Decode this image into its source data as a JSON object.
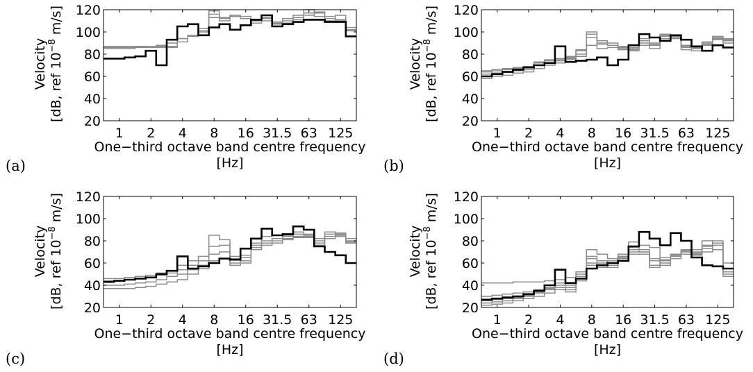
{
  "chart_data": [
    {
      "type": "line",
      "panel_label": "(a)",
      "xlabel_line1": "One−third octave band centre frequency",
      "xlabel_line2": "[Hz]",
      "ylabel_line1": "Velocity",
      "ylabel_line2": "[dB, ref 10",
      "ylabel_exp": "−8",
      "ylabel_tail": " m/s]",
      "x_tick_labels": [
        "1",
        "2",
        "4",
        "8",
        "16",
        "31.5",
        "63",
        "125"
      ],
      "y_ticks": [
        20,
        40,
        60,
        80,
        100,
        120
      ],
      "ylim": [
        20,
        120
      ],
      "x_bands": [
        "0.8",
        "1",
        "1.25",
        "1.6",
        "2",
        "2.5",
        "3.15",
        "4",
        "5",
        "6.3",
        "8",
        "10",
        "12.5",
        "16",
        "20",
        "25",
        "31.5",
        "40",
        "50",
        "63",
        "80",
        "100",
        "125",
        "160"
      ],
      "grid": false,
      "series": [
        {
          "style": "black",
          "values": [
            76,
            76,
            77,
            78,
            83,
            70,
            93,
            105,
            107,
            97,
            104,
            107,
            102,
            106,
            111,
            115,
            105,
            107,
            109,
            111,
            111,
            109,
            109,
            96
          ]
        },
        {
          "style": "gray",
          "values": [
            86,
            86,
            86,
            86,
            87,
            87,
            87,
            94,
            97,
            100,
            116,
            113,
            115,
            114,
            110,
            112,
            107,
            108,
            111,
            117,
            114,
            114,
            111,
            102
          ]
        },
        {
          "style": "gray",
          "values": [
            85,
            85,
            85,
            86,
            86,
            86,
            86,
            91,
            96,
            101,
            113,
            112,
            114,
            112,
            110,
            113,
            109,
            110,
            113,
            115,
            117,
            112,
            110,
            104
          ]
        },
        {
          "style": "gray",
          "values": [
            87,
            87,
            87,
            87,
            87,
            88,
            90,
            94,
            97,
            103,
            119,
            110,
            114,
            112,
            108,
            110,
            108,
            112,
            115,
            120,
            118,
            110,
            115,
            101
          ]
        }
      ]
    },
    {
      "type": "line",
      "panel_label": "(b)",
      "xlabel_line1": "One−third octave band centre frequency",
      "xlabel_line2": "[Hz]",
      "ylabel_line1": "Velocity",
      "ylabel_line2": "[dB, ref 10",
      "ylabel_exp": "−8",
      "ylabel_tail": " m/s]",
      "x_tick_labels": [
        "1",
        "2",
        "4",
        "8",
        "16",
        "31.5",
        "63",
        "125"
      ],
      "y_ticks": [
        20,
        40,
        60,
        80,
        100,
        120
      ],
      "ylim": [
        20,
        120
      ],
      "x_bands": [
        "0.8",
        "1",
        "1.25",
        "1.6",
        "2",
        "2.5",
        "3.15",
        "4",
        "5",
        "6.3",
        "8",
        "10",
        "12.5",
        "16",
        "20",
        "25",
        "31.5",
        "40",
        "50",
        "63",
        "80",
        "100",
        "125",
        "160"
      ],
      "grid": false,
      "series": [
        {
          "style": "black",
          "values": [
            60,
            62,
            64,
            66,
            68,
            70,
            72,
            87,
            73,
            74,
            75,
            77,
            70,
            75,
            88,
            98,
            95,
            92,
            97,
            93,
            87,
            83,
            88,
            86
          ]
        },
        {
          "style": "gray",
          "values": [
            64,
            65,
            66,
            67,
            68,
            72,
            74,
            75,
            77,
            84,
            100,
            92,
            90,
            87,
            86,
            94,
            90,
            96,
            96,
            88,
            85,
            90,
            94,
            92
          ]
        },
        {
          "style": "gray",
          "values": [
            62,
            63,
            64,
            65,
            66,
            70,
            72,
            74,
            76,
            80,
            95,
            90,
            88,
            85,
            84,
            90,
            88,
            97,
            95,
            86,
            85,
            89,
            96,
            94
          ]
        },
        {
          "style": "gray",
          "values": [
            58,
            60,
            61,
            63,
            64,
            67,
            70,
            72,
            75,
            78,
            88,
            85,
            86,
            84,
            83,
            88,
            85,
            94,
            94,
            84,
            83,
            88,
            93,
            90
          ]
        },
        {
          "style": "gray",
          "values": [
            65,
            66,
            67,
            68,
            69,
            73,
            75,
            76,
            78,
            83,
            98,
            89,
            88,
            86,
            85,
            92,
            89,
            98,
            97,
            87,
            86,
            91,
            95,
            93
          ]
        }
      ]
    },
    {
      "type": "line",
      "panel_label": "(c)",
      "xlabel_line1": "One−third octave band centre frequency",
      "xlabel_line2": "[Hz]",
      "ylabel_line1": "Velocity",
      "ylabel_line2": "[dB, ref 10",
      "ylabel_exp": "−8",
      "ylabel_tail": " m/s]",
      "x_tick_labels": [
        "1",
        "2",
        "4",
        "8",
        "16",
        "31.5",
        "63",
        "125"
      ],
      "y_ticks": [
        20,
        40,
        60,
        80,
        100,
        120
      ],
      "ylim": [
        20,
        120
      ],
      "x_bands": [
        "0.8",
        "1",
        "1.25",
        "1.6",
        "2",
        "2.5",
        "3.15",
        "4",
        "5",
        "6.3",
        "8",
        "10",
        "12.5",
        "16",
        "20",
        "25",
        "31.5",
        "40",
        "50",
        "63",
        "80",
        "100",
        "125",
        "160"
      ],
      "grid": false,
      "series": [
        {
          "style": "black",
          "values": [
            43,
            44,
            45,
            46,
            47,
            50,
            53,
            66,
            55,
            57,
            60,
            64,
            63,
            73,
            82,
            91,
            85,
            86,
            93,
            90,
            75,
            70,
            67,
            60
          ]
        },
        {
          "style": "gray",
          "values": [
            46,
            46,
            47,
            48,
            49,
            51,
            53,
            58,
            62,
            66,
            85,
            81,
            66,
            67,
            78,
            84,
            85,
            85,
            88,
            86,
            82,
            88,
            87,
            78
          ]
        },
        {
          "style": "gray",
          "values": [
            44,
            44,
            45,
            46,
            47,
            49,
            51,
            54,
            58,
            62,
            75,
            76,
            64,
            65,
            76,
            80,
            82,
            84,
            86,
            85,
            80,
            86,
            85,
            80
          ]
        },
        {
          "style": "gray",
          "values": [
            40,
            40,
            41,
            42,
            43,
            45,
            48,
            50,
            54,
            58,
            68,
            70,
            60,
            62,
            74,
            78,
            80,
            82,
            84,
            83,
            78,
            84,
            86,
            82
          ]
        },
        {
          "style": "gray",
          "values": [
            37,
            37,
            37,
            38,
            39,
            41,
            43,
            45,
            50,
            55,
            62,
            64,
            58,
            60,
            72,
            76,
            78,
            81,
            83,
            84,
            76,
            82,
            84,
            79
          ]
        }
      ]
    },
    {
      "type": "line",
      "panel_label": "(d)",
      "xlabel_line1": "One−third octave band centre frequency",
      "xlabel_line2": "[Hz]",
      "ylabel_line1": "Velocity",
      "ylabel_line2": "[dB, ref 10",
      "ylabel_exp": "−8",
      "ylabel_tail": " m/s]",
      "x_tick_labels": [
        "1",
        "2",
        "4",
        "8",
        "16",
        "31.5",
        "63",
        "125"
      ],
      "y_ticks": [
        20,
        40,
        60,
        80,
        100,
        120
      ],
      "ylim": [
        20,
        120
      ],
      "x_bands": [
        "0.8",
        "1",
        "1.25",
        "1.6",
        "2",
        "2.5",
        "3.15",
        "4",
        "5",
        "6.3",
        "8",
        "10",
        "12.5",
        "16",
        "20",
        "25",
        "31.5",
        "40",
        "50",
        "63",
        "80",
        "100",
        "125",
        "160"
      ],
      "grid": false,
      "series": [
        {
          "style": "black",
          "values": [
            27,
            28,
            29,
            30,
            32,
            35,
            40,
            54,
            42,
            46,
            55,
            58,
            60,
            62,
            75,
            88,
            82,
            76,
            87,
            80,
            65,
            58,
            57,
            55
          ]
        },
        {
          "style": "gray",
          "values": [
            42,
            42,
            42,
            43,
            43,
            43,
            44,
            45,
            47,
            52,
            72,
            68,
            64,
            66,
            79,
            76,
            74,
            58,
            67,
            70,
            72,
            80,
            78,
            55
          ]
        },
        {
          "style": "gray",
          "values": [
            30,
            31,
            32,
            33,
            34,
            36,
            38,
            42,
            40,
            48,
            66,
            62,
            60,
            65,
            74,
            72,
            62,
            65,
            68,
            70,
            67,
            70,
            76,
            50
          ]
        },
        {
          "style": "gray",
          "values": [
            24,
            25,
            26,
            28,
            30,
            33,
            36,
            38,
            36,
            46,
            60,
            58,
            56,
            64,
            70,
            70,
            58,
            62,
            66,
            72,
            70,
            75,
            78,
            60
          ]
        },
        {
          "style": "gray",
          "values": [
            22,
            23,
            24,
            26,
            28,
            30,
            33,
            36,
            34,
            44,
            58,
            56,
            58,
            66,
            68,
            68,
            56,
            60,
            64,
            68,
            68,
            73,
            80,
            48
          ]
        },
        {
          "style": "gray",
          "values": [
            26,
            27,
            28,
            29,
            31,
            34,
            37,
            40,
            38,
            50,
            64,
            60,
            62,
            68,
            72,
            70,
            64,
            63,
            67,
            71,
            69,
            76,
            72,
            52
          ]
        }
      ]
    }
  ]
}
